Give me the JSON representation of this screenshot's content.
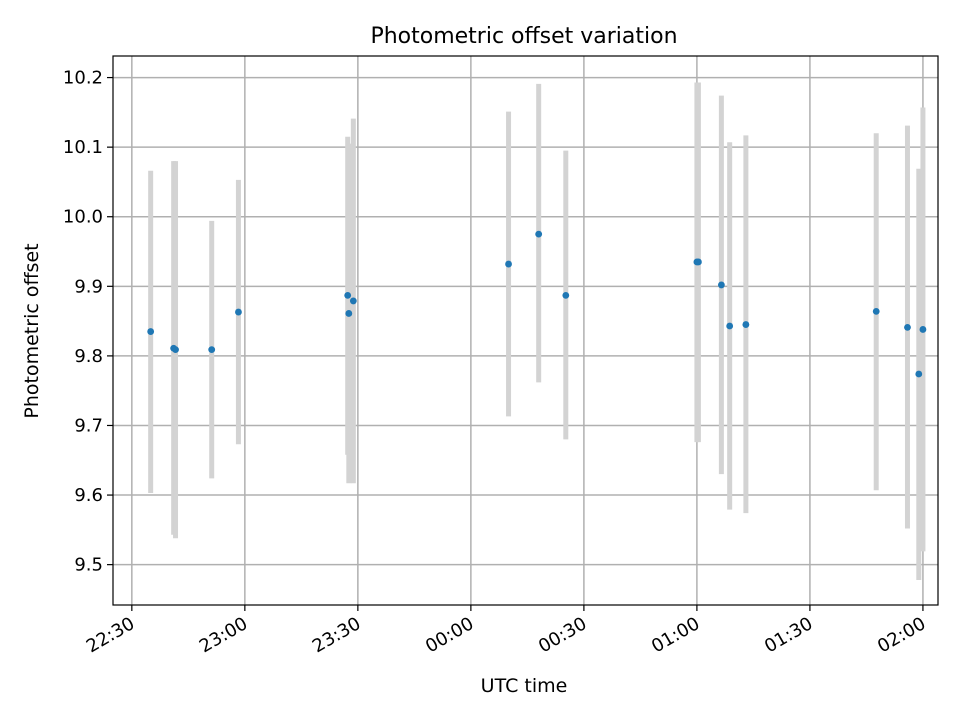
{
  "chart_data": {
    "type": "scatter",
    "title": "Photometric offset variation",
    "xlabel": "UTC time",
    "ylabel": "Photometric offset",
    "x_ticks": [
      "22:30",
      "23:00",
      "23:30",
      "00:00",
      "00:30",
      "01:00",
      "01:30",
      "02:00"
    ],
    "x_tick_minutes": [
      0,
      30,
      60,
      90,
      120,
      150,
      180,
      210
    ],
    "xlim_minutes": [
      -5,
      214
    ],
    "y_ticks": [
      "9.5",
      "9.6",
      "9.7",
      "9.8",
      "9.9",
      "10.0",
      "10.1",
      "10.2"
    ],
    "y_tick_values": [
      9.5,
      9.6,
      9.7,
      9.8,
      9.9,
      10.0,
      10.1,
      10.2
    ],
    "ylim": [
      9.442,
      10.231
    ],
    "grid": true,
    "point_color": "#1f77b4",
    "errorbar_color": "#d3d3d3",
    "points": [
      {
        "t": 5.0,
        "y": 9.835,
        "lo": 9.603,
        "hi": 10.066
      },
      {
        "t": 11.1,
        "y": 9.811,
        "lo": 9.543,
        "hi": 10.08
      },
      {
        "t": 11.6,
        "y": 9.809,
        "lo": 9.538,
        "hi": 10.08
      },
      {
        "t": 21.2,
        "y": 9.809,
        "lo": 9.624,
        "hi": 9.994
      },
      {
        "t": 28.3,
        "y": 9.863,
        "lo": 9.673,
        "hi": 10.053
      },
      {
        "t": 57.3,
        "y": 9.887,
        "lo": 9.658,
        "hi": 10.115
      },
      {
        "t": 57.6,
        "y": 9.861,
        "lo": 9.617,
        "hi": 10.105
      },
      {
        "t": 58.8,
        "y": 9.879,
        "lo": 9.617,
        "hi": 10.141
      },
      {
        "t": 100.0,
        "y": 9.932,
        "lo": 9.713,
        "hi": 10.151
      },
      {
        "t": 108.0,
        "y": 9.975,
        "lo": 9.762,
        "hi": 10.191
      },
      {
        "t": 115.2,
        "y": 9.887,
        "lo": 9.68,
        "hi": 10.095
      },
      {
        "t": 150.0,
        "y": 9.935,
        "lo": 9.676,
        "hi": 10.193
      },
      {
        "t": 150.4,
        "y": 9.935,
        "lo": 9.676,
        "hi": 10.193
      },
      {
        "t": 156.5,
        "y": 9.902,
        "lo": 9.63,
        "hi": 10.174
      },
      {
        "t": 158.7,
        "y": 9.843,
        "lo": 9.579,
        "hi": 10.107
      },
      {
        "t": 163.0,
        "y": 9.845,
        "lo": 9.574,
        "hi": 10.117
      },
      {
        "t": 197.6,
        "y": 9.864,
        "lo": 9.607,
        "hi": 10.12
      },
      {
        "t": 205.9,
        "y": 9.841,
        "lo": 9.552,
        "hi": 10.131
      },
      {
        "t": 208.9,
        "y": 9.774,
        "lo": 9.478,
        "hi": 10.069
      },
      {
        "t": 210.0,
        "y": 9.838,
        "lo": 9.519,
        "hi": 10.157
      }
    ]
  }
}
